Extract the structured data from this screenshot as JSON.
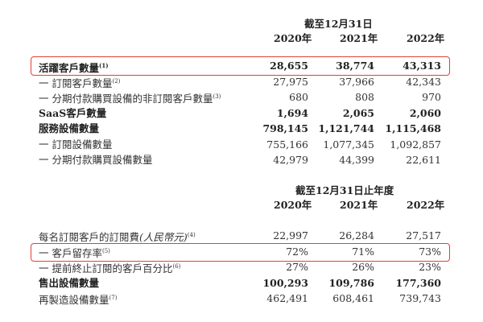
{
  "section1": {
    "period_header": "截至12月31日",
    "years": [
      "2020年",
      "2021年",
      "2022年"
    ],
    "rows": [
      {
        "label": "活躍客戶數量",
        "note": "(1)",
        "values": [
          "28,655",
          "38,774",
          "43,313"
        ],
        "bold": true,
        "highlighted": true
      },
      {
        "label": "一 訂閱客戶數量",
        "note": "(2)",
        "values": [
          "27,975",
          "37,966",
          "42,343"
        ]
      },
      {
        "label": "一 分期付款購買設備的非訂閱客戶數量",
        "note": "(3)",
        "values": [
          "680",
          "808",
          "970"
        ]
      },
      {
        "label": "SaaS客戶數量",
        "note": "",
        "values": [
          "1,694",
          "2,065",
          "2,060"
        ],
        "bold": true
      },
      {
        "label": "服務設備數量",
        "note": "",
        "values": [
          "798,145",
          "1,121,744",
          "1,115,468"
        ],
        "bold": true
      },
      {
        "label": "一 訂閱設備數量",
        "note": "",
        "values": [
          "755,166",
          "1,077,345",
          "1,092,857"
        ]
      },
      {
        "label": "一 分期付款購買設備數量",
        "note": "",
        "values": [
          "42,979",
          "44,399",
          "22,611"
        ]
      }
    ]
  },
  "section2": {
    "period_header": "截至12月31日止年度",
    "years": [
      "2020年",
      "2021年",
      "2022年"
    ],
    "rows": [
      {
        "label": "每名訂閱客戶的訂閱費",
        "label_italic": "(人民幣元)",
        "note": "(4)",
        "values": [
          "22,997",
          "26,284",
          "27,517"
        ]
      },
      {
        "label": "一 客戶留存率",
        "note": "(5)",
        "values": [
          "72%",
          "71%",
          "73%"
        ],
        "highlighted": true
      },
      {
        "label": "一 提前終止訂閱的客戶百分比",
        "note": "(6)",
        "values": [
          "27%",
          "26%",
          "23%"
        ]
      },
      {
        "label": "售出設備數量",
        "note": "",
        "values": [
          "100,293",
          "109,786",
          "177,360"
        ],
        "bold": true
      },
      {
        "label": "再製造設備數量",
        "note": "(7)",
        "values": [
          "462,491",
          "608,461",
          "739,743"
        ]
      }
    ]
  },
  "highlight_color": "#e0403a"
}
